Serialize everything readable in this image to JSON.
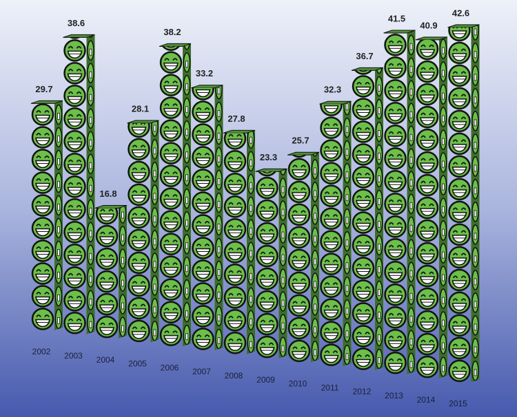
{
  "chart_data": {
    "type": "bar",
    "categories": [
      "2002",
      "2003",
      "2004",
      "2005",
      "2006",
      "2007",
      "2008",
      "2009",
      "2010",
      "2011",
      "2012",
      "2013",
      "2014",
      "2015"
    ],
    "values": [
      29.7,
      38.6,
      16.8,
      28.1,
      38.2,
      33.2,
      27.8,
      23.3,
      25.7,
      32.3,
      36.7,
      41.5,
      40.9,
      42.6
    ],
    "color": "#6cc04a"
  }
}
